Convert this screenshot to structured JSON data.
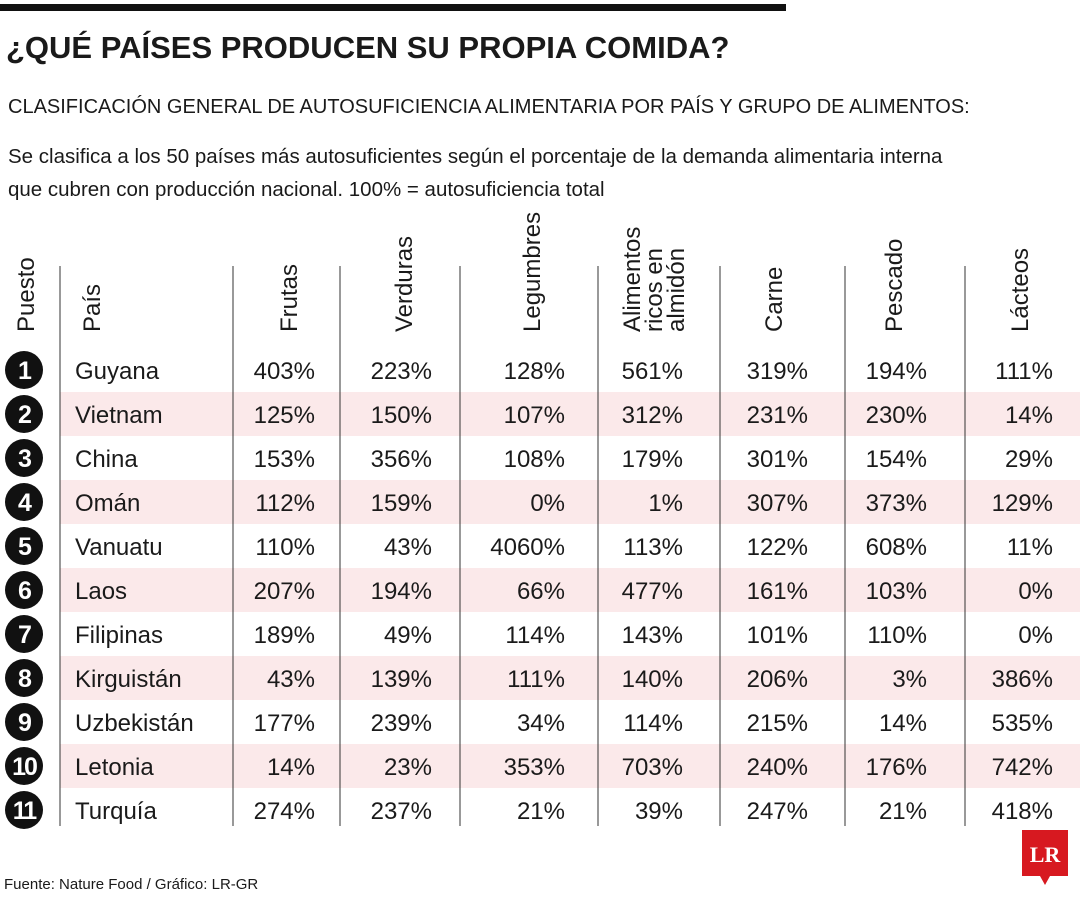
{
  "header": {
    "title": "¿QUÉ PAÍSES PRODUCEN SU PROPIA COMIDA?",
    "subtitle": "CLASIFICACIÓN GENERAL DE AUTOSUFICIENCIA ALIMENTARIA POR PAÍS Y GRUPO DE ALIMENTOS:",
    "description": [
      "Se clasifica a los 50 países más autosuficientes según el porcentaje de la demanda alimentaria interna",
      "que cubren con producción nacional. 100% = autosuficiencia total"
    ]
  },
  "table": {
    "columns": [
      "Puesto",
      "País",
      "Frutas",
      "Verduras",
      "Legumbres",
      [
        "Alimentos",
        "ricos en",
        "almidón"
      ],
      "Carne",
      "Pescado",
      "Lácteos"
    ],
    "rows": [
      [
        "1",
        "Guyana",
        "403%",
        "223%",
        "128%",
        "561%",
        "319%",
        "194%",
        "111%"
      ],
      [
        "2",
        "Vietnam",
        "125%",
        "150%",
        "107%",
        "312%",
        "231%",
        "230%",
        "14%"
      ],
      [
        "3",
        "China",
        "153%",
        "356%",
        "108%",
        "179%",
        "301%",
        "154%",
        "29%"
      ],
      [
        "4",
        "Omán",
        "112%",
        "159%",
        "0%",
        "1%",
        "307%",
        "373%",
        "129%"
      ],
      [
        "5",
        "Vanuatu",
        "110%",
        "43%",
        "4060%",
        "113%",
        "122%",
        "608%",
        "11%"
      ],
      [
        "6",
        "Laos",
        "207%",
        "194%",
        "66%",
        "477%",
        "161%",
        "103%",
        "0%"
      ],
      [
        "7",
        "Filipinas",
        "189%",
        "49%",
        "114%",
        "143%",
        "101%",
        "110%",
        "0%"
      ],
      [
        "8",
        "Kirguistán",
        "43%",
        "139%",
        "111%",
        "140%",
        "206%",
        "3%",
        "386%"
      ],
      [
        "9",
        "Uzbekistán",
        "177%",
        "239%",
        "34%",
        "114%",
        "215%",
        "14%",
        "535%"
      ],
      [
        "10",
        "Letonia",
        "14%",
        "23%",
        "353%",
        "703%",
        "240%",
        "176%",
        "742%"
      ],
      [
        "11",
        "Turquía",
        "274%",
        "237%",
        "21%",
        "39%",
        "247%",
        "21%",
        "418%"
      ]
    ]
  },
  "footer": {
    "source": "Fuente: Nature Food / Gráfico: LR-GR",
    "logo": "LR"
  }
}
